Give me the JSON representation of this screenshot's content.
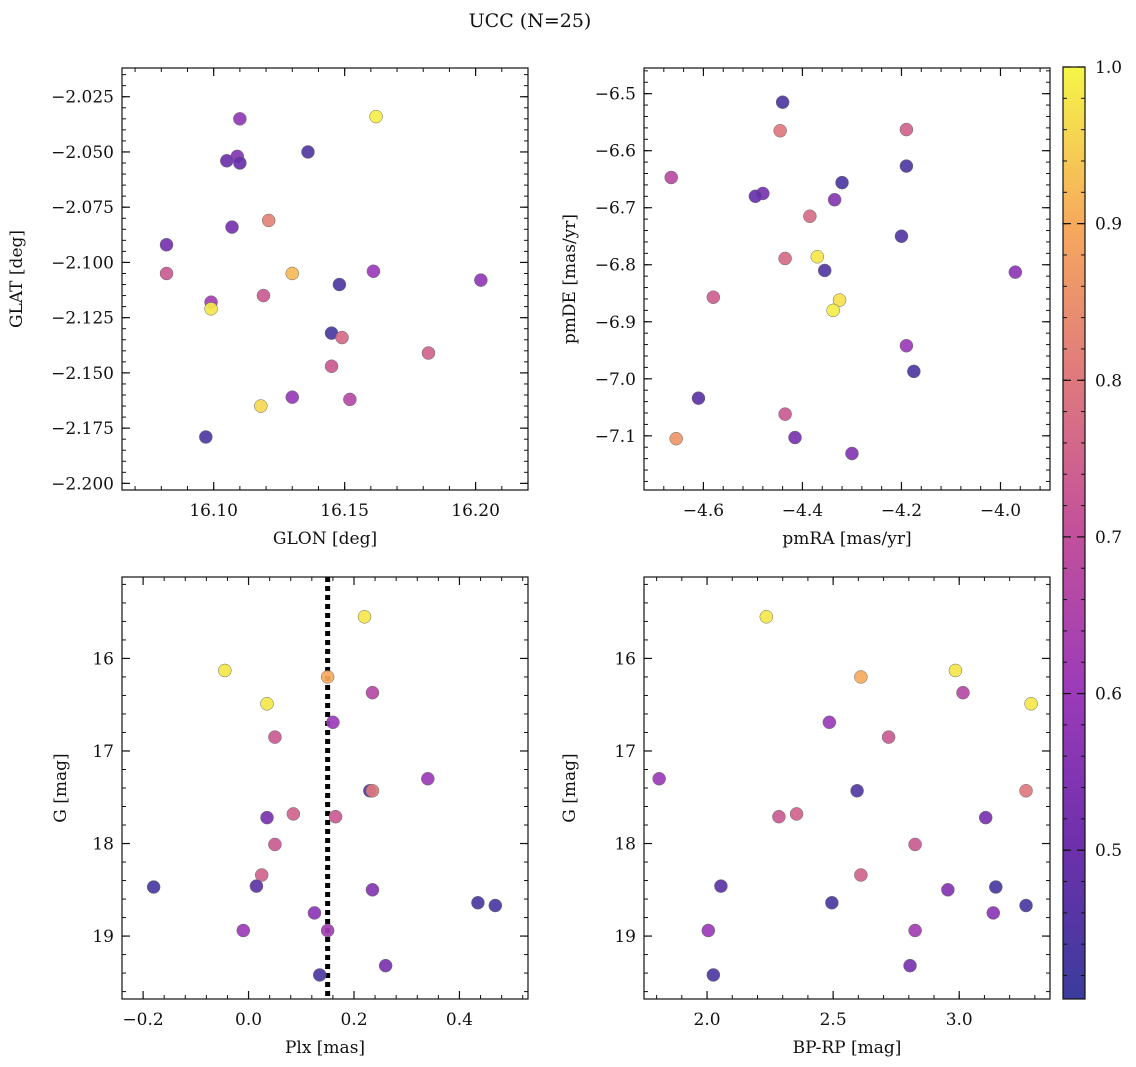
{
  "figure_title": "UCC (N=25)",
  "colorbar": {
    "range": [
      0.405,
      1.0
    ],
    "ticks": [
      0.5,
      0.6,
      0.7,
      0.8,
      0.9,
      1.0
    ],
    "tick_labels": [
      "0.5",
      "0.6",
      "0.7",
      "0.8",
      "0.9",
      "1.0"
    ],
    "colormap": "plasma"
  },
  "chart_data": [
    {
      "type": "scatter",
      "id": "glon-glat",
      "xlabel": "GLON [deg]",
      "ylabel": "GLAT [deg]",
      "xlim": [
        16.065,
        16.22
      ],
      "ylim": [
        -2.203,
        -2.012
      ],
      "y_inverted": false,
      "xticks": [
        16.1,
        16.15,
        16.2
      ],
      "xtick_labels": [
        "16.10",
        "16.15",
        "16.20"
      ],
      "yticks": [
        -2.025,
        -2.05,
        -2.075,
        -2.1,
        -2.125,
        -2.15,
        -2.175,
        -2.2
      ],
      "ytick_labels": [
        "−2.025",
        "−2.050",
        "−2.075",
        "−2.100",
        "−2.125",
        "−2.150",
        "−2.175",
        "−2.200"
      ],
      "points": [
        {
          "x": 16.162,
          "y": -2.034,
          "c": 0.99
        },
        {
          "x": 16.11,
          "y": -2.035,
          "c": 0.58
        },
        {
          "x": 16.136,
          "y": -2.05,
          "c": 0.45
        },
        {
          "x": 16.109,
          "y": -2.052,
          "c": 0.55
        },
        {
          "x": 16.105,
          "y": -2.054,
          "c": 0.5
        },
        {
          "x": 16.11,
          "y": -2.055,
          "c": 0.49
        },
        {
          "x": 16.121,
          "y": -2.081,
          "c": 0.82
        },
        {
          "x": 16.107,
          "y": -2.084,
          "c": 0.52
        },
        {
          "x": 16.082,
          "y": -2.092,
          "c": 0.52
        },
        {
          "x": 16.082,
          "y": -2.105,
          "c": 0.73
        },
        {
          "x": 16.13,
          "y": -2.105,
          "c": 0.92
        },
        {
          "x": 16.161,
          "y": -2.104,
          "c": 0.6
        },
        {
          "x": 16.202,
          "y": -2.108,
          "c": 0.58
        },
        {
          "x": 16.148,
          "y": -2.11,
          "c": 0.44
        },
        {
          "x": 16.119,
          "y": -2.115,
          "c": 0.73
        },
        {
          "x": 16.099,
          "y": -2.118,
          "c": 0.62
        },
        {
          "x": 16.099,
          "y": -2.121,
          "c": 0.98
        },
        {
          "x": 16.145,
          "y": -2.132,
          "c": 0.43
        },
        {
          "x": 16.149,
          "y": -2.134,
          "c": 0.77
        },
        {
          "x": 16.182,
          "y": -2.141,
          "c": 0.75
        },
        {
          "x": 16.145,
          "y": -2.147,
          "c": 0.73
        },
        {
          "x": 16.13,
          "y": -2.161,
          "c": 0.59
        },
        {
          "x": 16.152,
          "y": -2.162,
          "c": 0.67
        },
        {
          "x": 16.118,
          "y": -2.165,
          "c": 0.96
        },
        {
          "x": 16.097,
          "y": -2.179,
          "c": 0.44
        }
      ]
    },
    {
      "type": "scatter",
      "id": "pm",
      "xlabel": "pmRA [mas/yr]",
      "ylabel": "pmDE [mas/yr]",
      "xlim": [
        -4.72,
        -3.9
      ],
      "ylim": [
        -7.195,
        -6.455
      ],
      "y_inverted": false,
      "xticks": [
        -4.6,
        -4.4,
        -4.2,
        -4.0
      ],
      "xtick_labels": [
        "−4.6",
        "−4.4",
        "−4.2",
        "−4.0"
      ],
      "yticks": [
        -6.5,
        -6.6,
        -6.7,
        -6.8,
        -6.9,
        -7.0,
        -7.1
      ],
      "ytick_labels": [
        "−6.5",
        "−6.6",
        "−6.7",
        "−6.8",
        "−6.9",
        "−7.0",
        "−7.1"
      ],
      "points": [
        {
          "x": -4.44,
          "y": -6.515,
          "c": 0.44
        },
        {
          "x": -4.445,
          "y": -6.565,
          "c": 0.8
        },
        {
          "x": -4.19,
          "y": -6.563,
          "c": 0.75
        },
        {
          "x": -4.19,
          "y": -6.627,
          "c": 0.44
        },
        {
          "x": -4.665,
          "y": -6.647,
          "c": 0.68
        },
        {
          "x": -4.32,
          "y": -6.656,
          "c": 0.44
        },
        {
          "x": -4.48,
          "y": -6.675,
          "c": 0.52
        },
        {
          "x": -4.495,
          "y": -6.68,
          "c": 0.49
        },
        {
          "x": -4.335,
          "y": -6.686,
          "c": 0.55
        },
        {
          "x": -4.385,
          "y": -6.715,
          "c": 0.77
        },
        {
          "x": -4.2,
          "y": -6.75,
          "c": 0.45
        },
        {
          "x": -4.37,
          "y": -6.786,
          "c": 0.98
        },
        {
          "x": -4.435,
          "y": -6.789,
          "c": 0.77
        },
        {
          "x": -4.355,
          "y": -6.81,
          "c": 0.45
        },
        {
          "x": -3.97,
          "y": -6.813,
          "c": 0.57
        },
        {
          "x": -4.58,
          "y": -6.857,
          "c": 0.74
        },
        {
          "x": -4.325,
          "y": -6.862,
          "c": 0.97
        },
        {
          "x": -4.338,
          "y": -6.88,
          "c": 0.99
        },
        {
          "x": -4.19,
          "y": -6.942,
          "c": 0.6
        },
        {
          "x": -4.175,
          "y": -6.987,
          "c": 0.44
        },
        {
          "x": -4.61,
          "y": -7.034,
          "c": 0.47
        },
        {
          "x": -4.435,
          "y": -7.062,
          "c": 0.73
        },
        {
          "x": -4.655,
          "y": -7.105,
          "c": 0.86
        },
        {
          "x": -4.415,
          "y": -7.103,
          "c": 0.53
        },
        {
          "x": -4.3,
          "y": -7.131,
          "c": 0.55
        }
      ]
    },
    {
      "type": "scatter",
      "id": "plx-g",
      "xlabel": "Plx [mas]",
      "ylabel": "G [mag]",
      "xlim": [
        -0.24,
        0.53
      ],
      "ylim": [
        19.68,
        15.12
      ],
      "y_inverted": true,
      "vline": {
        "x": 0.15,
        "style": "dotted"
      },
      "xticks": [
        -0.2,
        0.0,
        0.2,
        0.4
      ],
      "xtick_labels": [
        "−0.2",
        "0.0",
        "0.2",
        "0.4"
      ],
      "yticks": [
        16,
        17,
        18,
        19
      ],
      "ytick_labels": [
        "16",
        "17",
        "18",
        "19"
      ],
      "points": [
        {
          "x": 0.22,
          "y": 15.55,
          "c": 0.98
        },
        {
          "x": -0.045,
          "y": 16.13,
          "c": 0.98
        },
        {
          "x": 0.15,
          "y": 16.2,
          "c": 0.9
        },
        {
          "x": 0.235,
          "y": 16.37,
          "c": 0.67
        },
        {
          "x": 0.035,
          "y": 16.49,
          "c": 0.98
        },
        {
          "x": 0.16,
          "y": 16.69,
          "c": 0.6
        },
        {
          "x": 0.05,
          "y": 16.85,
          "c": 0.73
        },
        {
          "x": 0.34,
          "y": 17.3,
          "c": 0.6
        },
        {
          "x": 0.23,
          "y": 17.43,
          "c": 0.45
        },
        {
          "x": 0.235,
          "y": 17.43,
          "c": 0.8
        },
        {
          "x": 0.085,
          "y": 17.68,
          "c": 0.75
        },
        {
          "x": 0.165,
          "y": 17.71,
          "c": 0.73
        },
        {
          "x": 0.035,
          "y": 17.72,
          "c": 0.53
        },
        {
          "x": 0.05,
          "y": 18.01,
          "c": 0.73
        },
        {
          "x": 0.025,
          "y": 18.34,
          "c": 0.75
        },
        {
          "x": -0.18,
          "y": 18.47,
          "c": 0.43
        },
        {
          "x": 0.015,
          "y": 18.46,
          "c": 0.47
        },
        {
          "x": 0.235,
          "y": 18.5,
          "c": 0.55
        },
        {
          "x": 0.435,
          "y": 18.64,
          "c": 0.43
        },
        {
          "x": 0.468,
          "y": 18.67,
          "c": 0.43
        },
        {
          "x": 0.125,
          "y": 18.75,
          "c": 0.57
        },
        {
          "x": -0.01,
          "y": 18.94,
          "c": 0.6
        },
        {
          "x": 0.15,
          "y": 18.94,
          "c": 0.62
        },
        {
          "x": 0.26,
          "y": 19.32,
          "c": 0.53
        },
        {
          "x": 0.135,
          "y": 19.42,
          "c": 0.44
        }
      ]
    },
    {
      "type": "scatter",
      "id": "cmd",
      "xlabel": "BP-RP [mag]",
      "ylabel": "G [mag]",
      "xlim": [
        1.75,
        3.36
      ],
      "ylim": [
        19.68,
        15.12
      ],
      "y_inverted": true,
      "xticks": [
        2.0,
        2.5,
        3.0
      ],
      "xtick_labels": [
        "2.0",
        "2.5",
        "3.0"
      ],
      "yticks": [
        16,
        17,
        18,
        19
      ],
      "ytick_labels": [
        "16",
        "17",
        "18",
        "19"
      ],
      "points": [
        {
          "x": 2.235,
          "y": 15.55,
          "c": 0.98
        },
        {
          "x": 2.985,
          "y": 16.13,
          "c": 0.98
        },
        {
          "x": 2.61,
          "y": 16.2,
          "c": 0.9
        },
        {
          "x": 3.015,
          "y": 16.37,
          "c": 0.67
        },
        {
          "x": 3.285,
          "y": 16.49,
          "c": 0.98
        },
        {
          "x": 2.485,
          "y": 16.69,
          "c": 0.6
        },
        {
          "x": 2.72,
          "y": 16.85,
          "c": 0.73
        },
        {
          "x": 1.81,
          "y": 17.3,
          "c": 0.6
        },
        {
          "x": 2.595,
          "y": 17.43,
          "c": 0.45
        },
        {
          "x": 3.265,
          "y": 17.43,
          "c": 0.8
        },
        {
          "x": 2.355,
          "y": 17.68,
          "c": 0.75
        },
        {
          "x": 2.285,
          "y": 17.71,
          "c": 0.73
        },
        {
          "x": 3.105,
          "y": 17.72,
          "c": 0.53
        },
        {
          "x": 2.825,
          "y": 18.01,
          "c": 0.73
        },
        {
          "x": 2.61,
          "y": 18.34,
          "c": 0.75
        },
        {
          "x": 3.145,
          "y": 18.47,
          "c": 0.43
        },
        {
          "x": 2.055,
          "y": 18.46,
          "c": 0.47
        },
        {
          "x": 2.955,
          "y": 18.5,
          "c": 0.55
        },
        {
          "x": 2.495,
          "y": 18.64,
          "c": 0.43
        },
        {
          "x": 3.265,
          "y": 18.67,
          "c": 0.43
        },
        {
          "x": 3.135,
          "y": 18.75,
          "c": 0.57
        },
        {
          "x": 2.005,
          "y": 18.94,
          "c": 0.6
        },
        {
          "x": 2.825,
          "y": 18.94,
          "c": 0.62
        },
        {
          "x": 2.805,
          "y": 19.32,
          "c": 0.53
        },
        {
          "x": 2.025,
          "y": 19.42,
          "c": 0.44
        }
      ]
    }
  ]
}
